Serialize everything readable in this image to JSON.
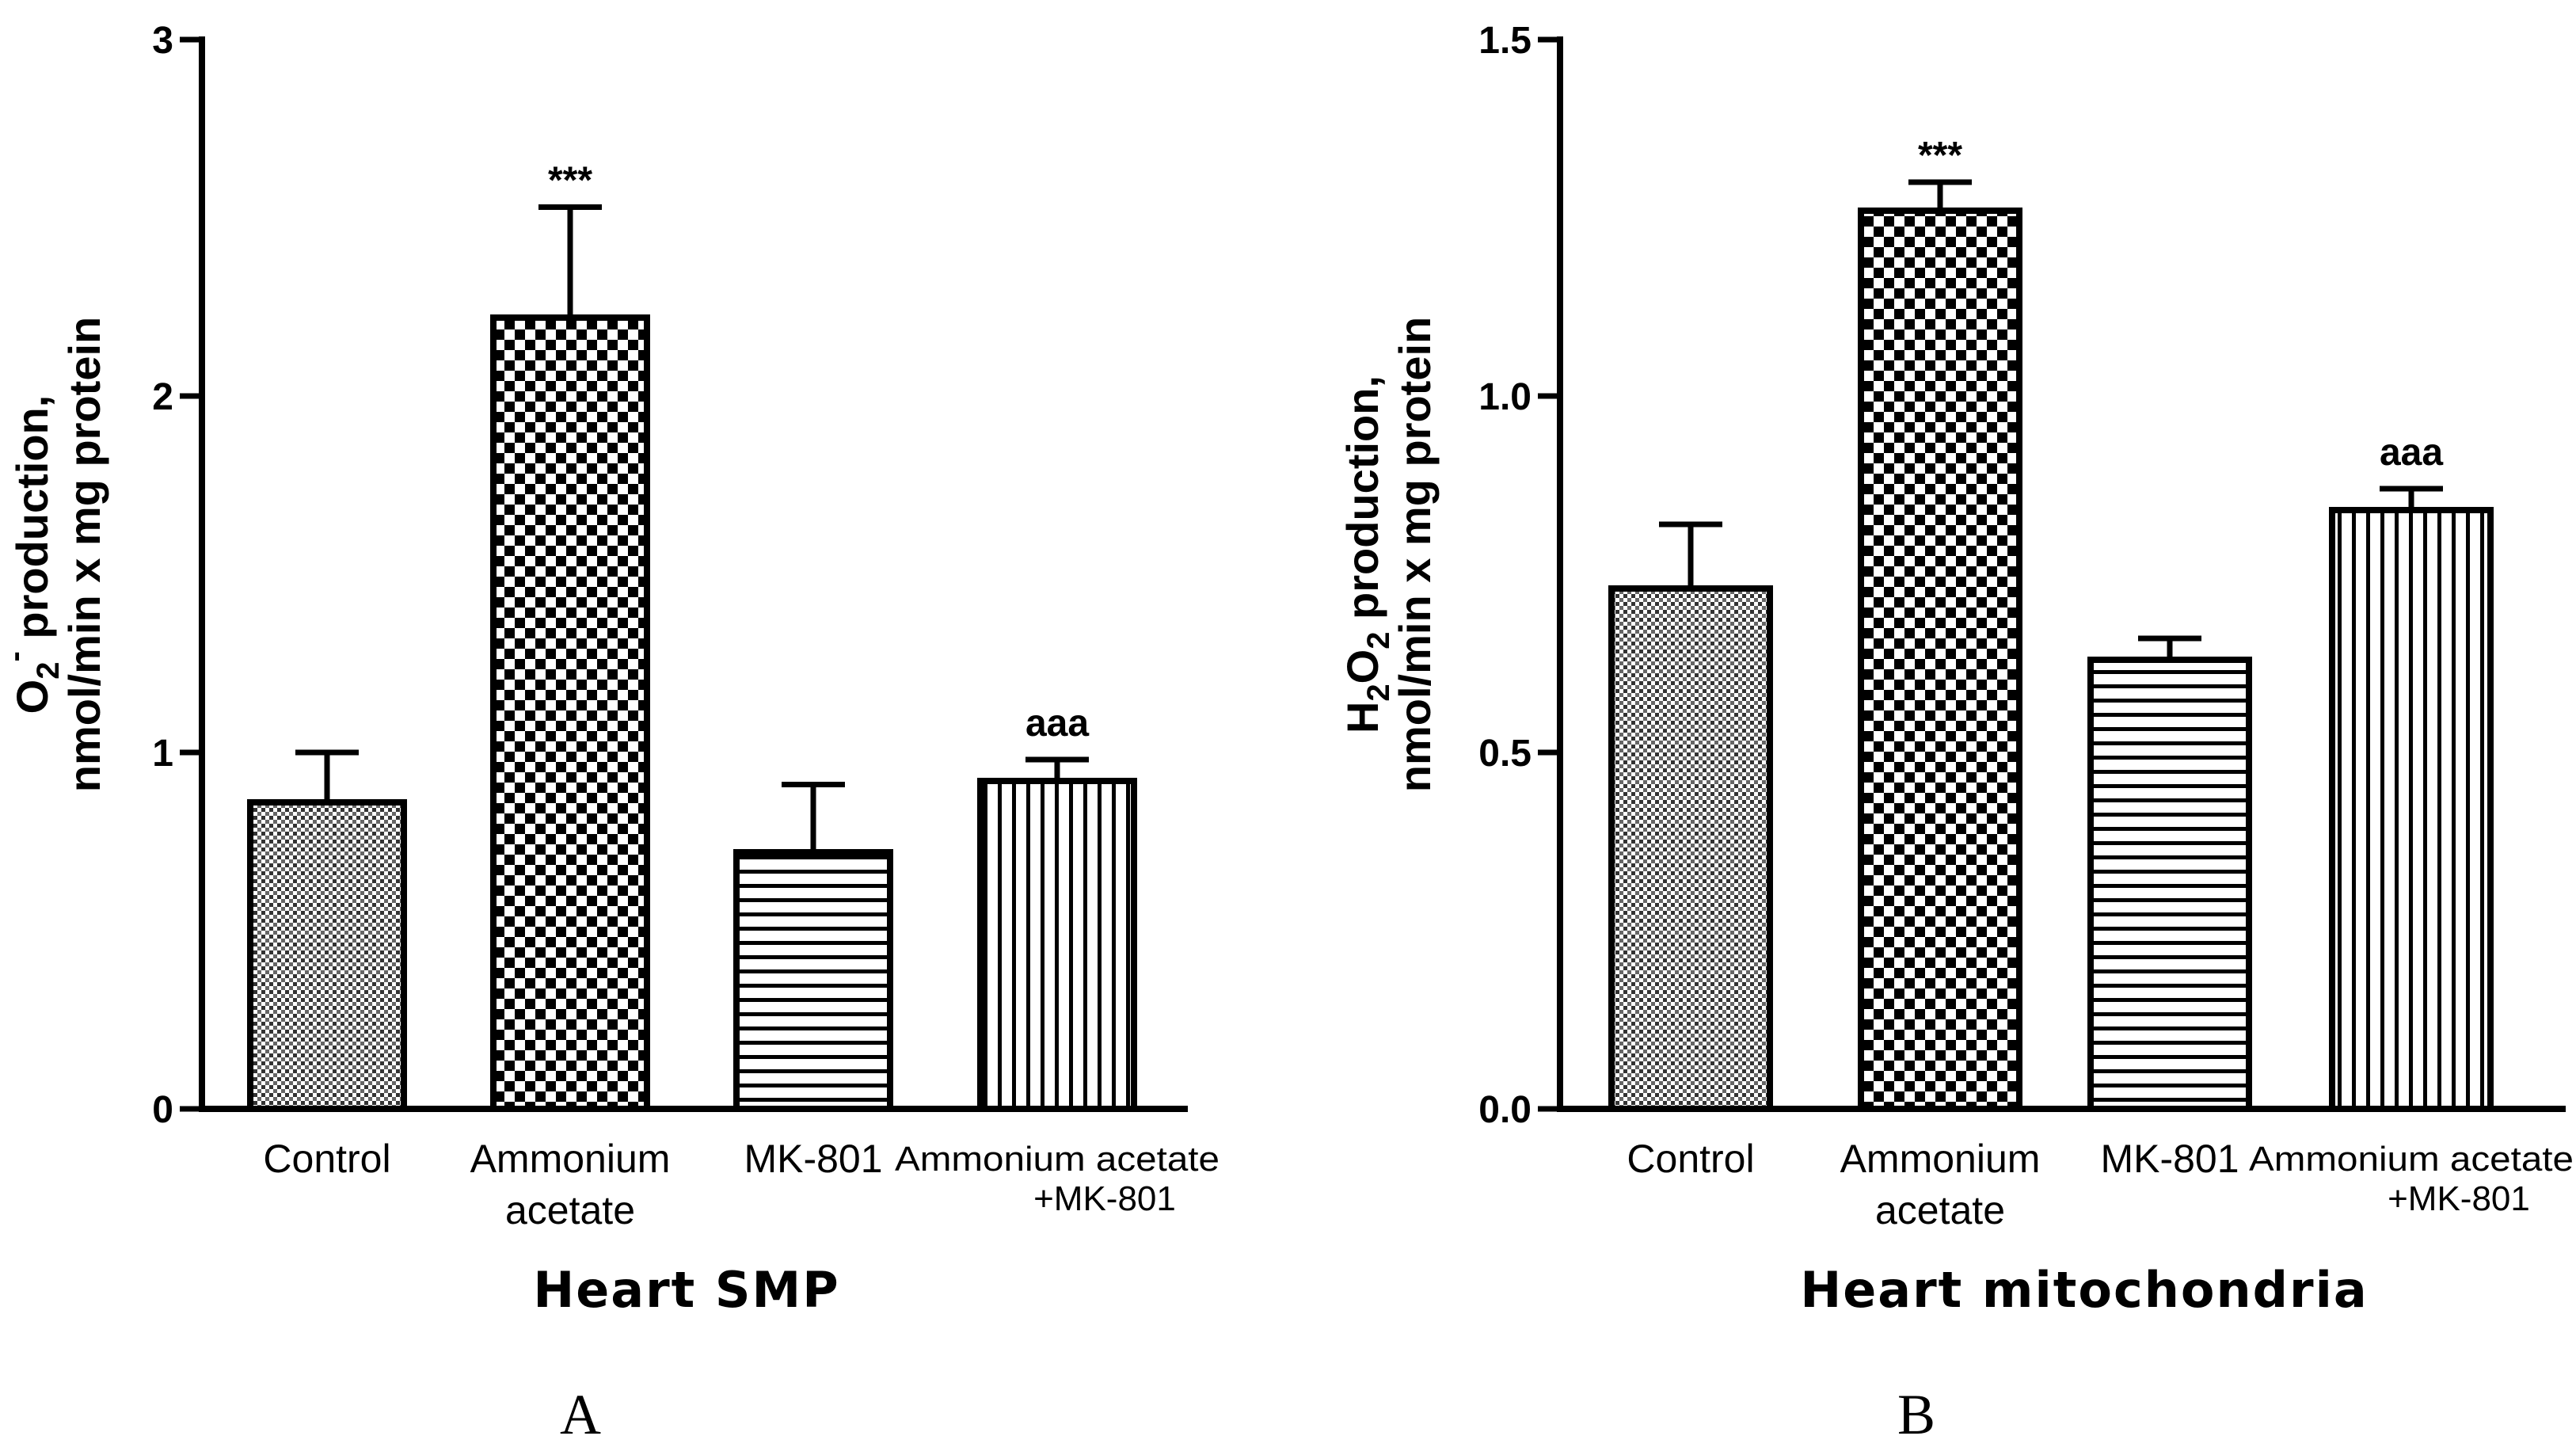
{
  "chart_data": [
    {
      "type": "bar",
      "panel": "A",
      "xlabel": "Heart SMP",
      "ylabel_line1_main": "O",
      "ylabel_line1_sub": "2",
      "ylabel_line1_sup": "-",
      "ylabel_line1_rest": " production,",
      "ylabel_line2": "nmol/min x mg protein",
      "ylim": [
        0,
        3
      ],
      "yticks": [
        "0",
        "1",
        "2",
        "3"
      ],
      "ytick_values": [
        0,
        1,
        2,
        3
      ],
      "categories": [
        {
          "line1": "Control",
          "line2": ""
        },
        {
          "line1": "Ammonium",
          "line2": "acetate"
        },
        {
          "line1": "MK-801",
          "line2": ""
        },
        {
          "line1": "Ammonium acetate",
          "line2": "+MK-801"
        }
      ],
      "values": [
        0.86,
        2.22,
        0.72,
        0.92
      ],
      "errors": [
        0.14,
        0.31,
        0.19,
        0.06
      ],
      "annotations": [
        "",
        "***",
        "",
        "aaa"
      ],
      "patterns": [
        "dots",
        "checker",
        "hlines",
        "vlines"
      ]
    },
    {
      "type": "bar",
      "panel": "B",
      "xlabel": "Heart mitochondria",
      "ylabel_line1_main": "H",
      "ylabel_line1_sub": "2",
      "ylabel_line1_mid": "O",
      "ylabel_line1_sub2": "2",
      "ylabel_line1_rest": " production,",
      "ylabel_line2": "nmol/min x mg protein",
      "ylim": [
        0,
        1.5
      ],
      "yticks": [
        "0.0",
        "0.5",
        "1.0",
        "1.5"
      ],
      "ytick_values": [
        0,
        0.5,
        1.0,
        1.5
      ],
      "categories": [
        {
          "line1": "Control",
          "line2": ""
        },
        {
          "line1": "Ammonium",
          "line2": "acetate"
        },
        {
          "line1": "MK-801",
          "line2": ""
        },
        {
          "line1": "Ammonium acetate",
          "line2": "+MK-801"
        }
      ],
      "values": [
        0.73,
        1.26,
        0.63,
        0.84
      ],
      "errors": [
        0.09,
        0.04,
        0.03,
        0.03
      ],
      "annotations": [
        "",
        "***",
        "",
        "aaa"
      ],
      "patterns": [
        "dots",
        "checker",
        "hlines",
        "vlines"
      ]
    }
  ]
}
